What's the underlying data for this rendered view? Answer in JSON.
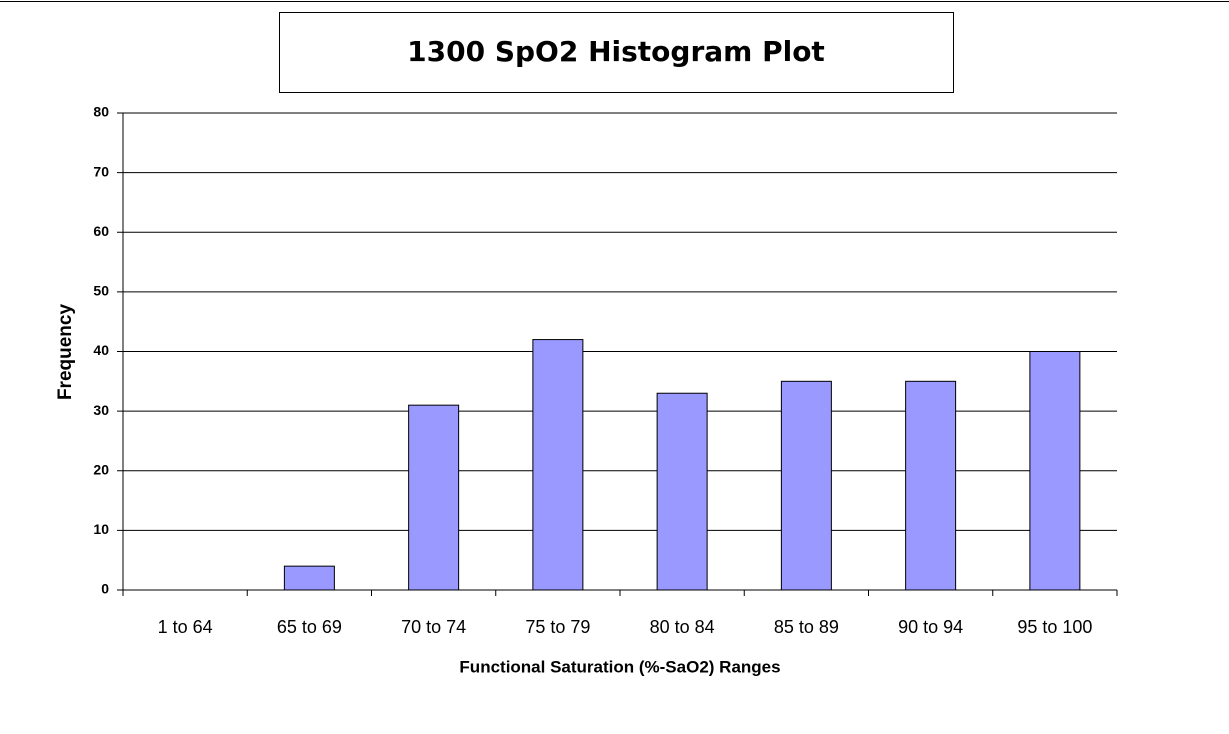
{
  "chart_data": {
    "type": "bar",
    "title": "1300 SpO2 Histogram Plot",
    "x_label": "Functional Saturation (%-SaO2) Ranges",
    "y_label": "Frequency",
    "categories": [
      "1 to 64",
      "65 to 69",
      "70 to 74",
      "75 to 79",
      "80 to 84",
      "85 to 89",
      "90 to 94",
      "95 to 100"
    ],
    "values": [
      0,
      4,
      31,
      42,
      33,
      35,
      35,
      40
    ],
    "color": "#9999ff",
    "ylim": [
      0,
      80
    ],
    "yticks": [
      0,
      10,
      20,
      30,
      40,
      50,
      60,
      70,
      80
    ],
    "grid": true
  }
}
